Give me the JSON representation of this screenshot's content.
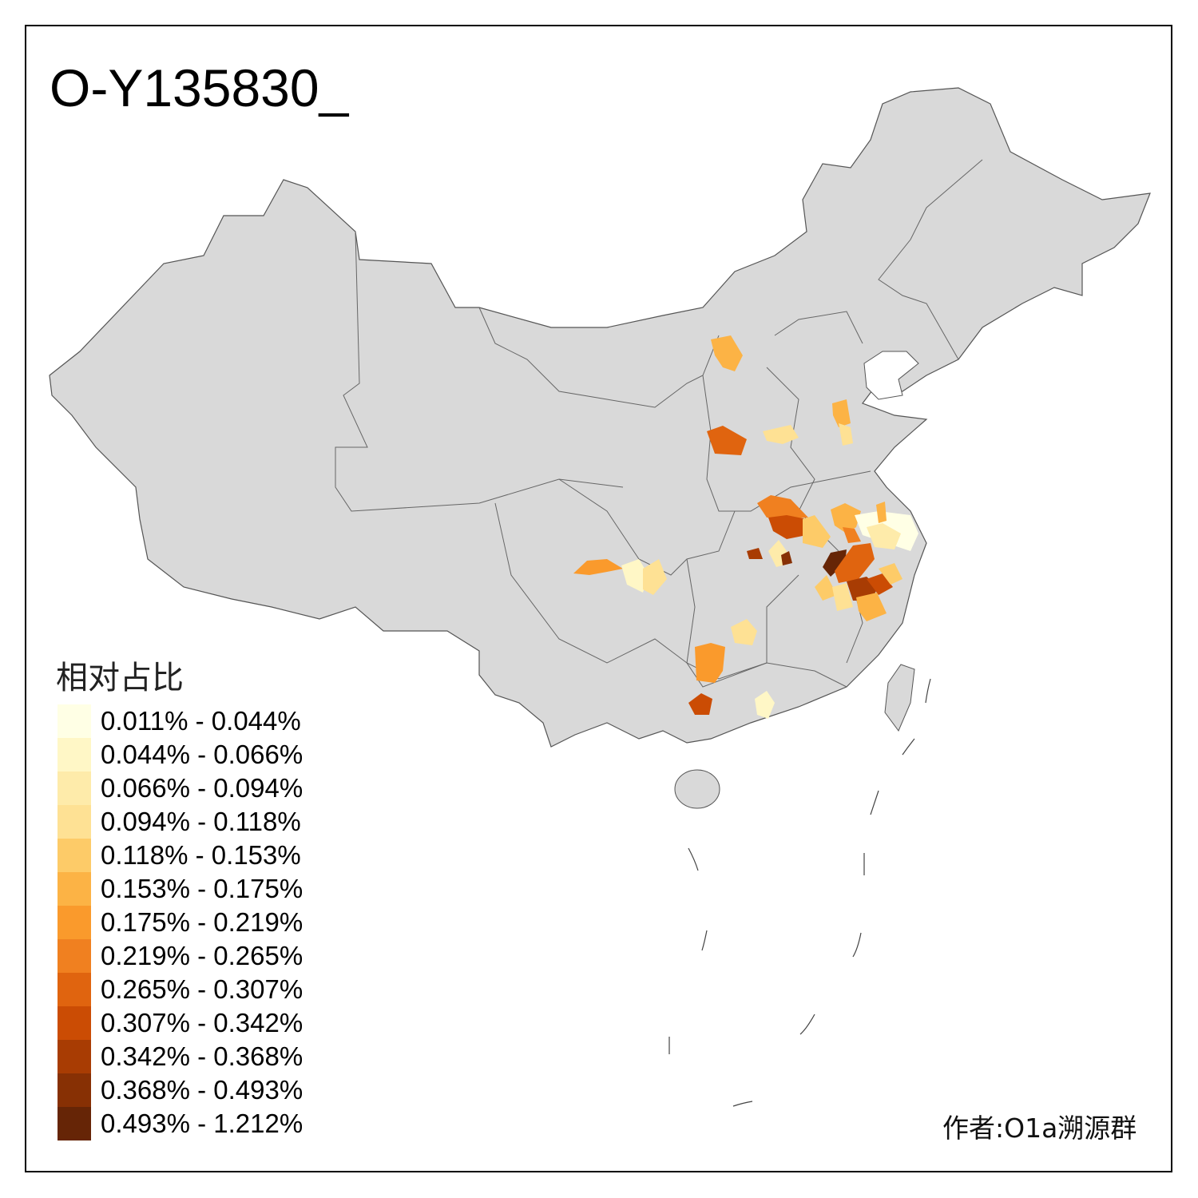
{
  "title": "O-Y135830_",
  "legend": {
    "title": "相对占比",
    "items": [
      {
        "label": "0.011% - 0.044%",
        "color": "#FFFFE5"
      },
      {
        "label": "0.044% - 0.066%",
        "color": "#FFF7C6"
      },
      {
        "label": "0.066% - 0.094%",
        "color": "#FEEBAA"
      },
      {
        "label": "0.094% - 0.118%",
        "color": "#FEE194"
      },
      {
        "label": "0.118% - 0.153%",
        "color": "#FDCB68"
      },
      {
        "label": "0.153% - 0.175%",
        "color": "#FCB345"
      },
      {
        "label": "0.175% - 0.219%",
        "color": "#FA9A2C"
      },
      {
        "label": "0.219% - 0.265%",
        "color": "#F08020"
      },
      {
        "label": "0.265% - 0.307%",
        "color": "#E0640F"
      },
      {
        "label": "0.307% - 0.342%",
        "color": "#CB4C04"
      },
      {
        "label": "0.342% - 0.368%",
        "color": "#A83C03"
      },
      {
        "label": "0.368% - 0.493%",
        "color": "#873004"
      },
      {
        "label": "0.493% - 1.212%",
        "color": "#662506"
      }
    ]
  },
  "map": {
    "base_color": "#D9D9D9",
    "border_color": "#555555"
  },
  "author": "作者:O1a溯源群"
}
